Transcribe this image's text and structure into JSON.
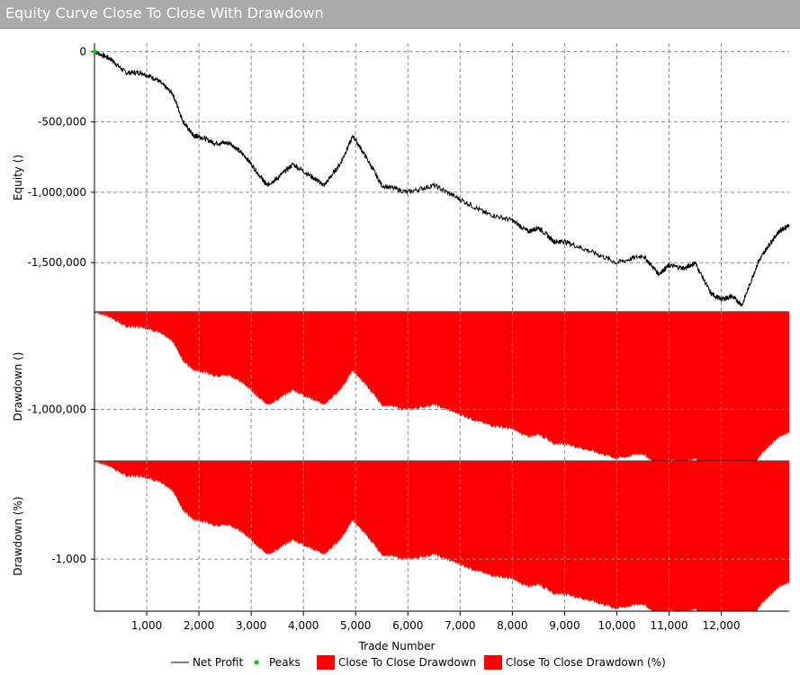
{
  "window": {
    "title": "Equity Curve Close To Close With Drawdown"
  },
  "colors": {
    "equity_line": "#000000",
    "peaks": "#00cc00",
    "drawdown_fill": "#ff0000",
    "title_bar": "#aaaaaa",
    "grid": "#8a8a8a"
  },
  "chart_data": [
    {
      "type": "line",
      "panel": "equity",
      "ylabel": "Equity ()",
      "ylim": [
        -1850000,
        60000
      ],
      "yticks": [
        0,
        -500000,
        -1000000,
        -1500000
      ],
      "ytick_labels": [
        "0",
        "-500,000",
        "-1,000,000",
        "-1,500,000"
      ],
      "grid": true,
      "series": [
        {
          "name": "Net Profit",
          "x": [
            0,
            300,
            600,
            900,
            1200,
            1500,
            1700,
            1900,
            2000,
            2300,
            2600,
            2900,
            3200,
            3300,
            3500,
            3800,
            4200,
            4400,
            4700,
            4950,
            5200,
            5500,
            6000,
            6500,
            7000,
            7500,
            8000,
            8300,
            8500,
            8800,
            9000,
            9500,
            10000,
            10500,
            10800,
            11000,
            11300,
            11500,
            11800,
            12000,
            12200,
            12400,
            12700,
            12900,
            13100,
            13300
          ],
          "y": [
            0,
            -50000,
            -150000,
            -150000,
            -200000,
            -300000,
            -500000,
            -600000,
            -600000,
            -650000,
            -650000,
            -750000,
            -900000,
            -950000,
            -900000,
            -800000,
            -900000,
            -950000,
            -800000,
            -600000,
            -750000,
            -950000,
            -1000000,
            -950000,
            -1050000,
            -1150000,
            -1200000,
            -1280000,
            -1250000,
            -1350000,
            -1350000,
            -1420000,
            -1500000,
            -1450000,
            -1580000,
            -1520000,
            -1540000,
            -1500000,
            -1720000,
            -1760000,
            -1740000,
            -1800000,
            -1500000,
            -1380000,
            -1280000,
            -1230000
          ]
        }
      ],
      "peaks": {
        "name": "Peaks",
        "x": [
          0
        ],
        "y": [
          0
        ]
      }
    },
    {
      "type": "area",
      "panel": "drawdown",
      "ylabel": "Drawdown ()",
      "ylim": [
        -1530000,
        0
      ],
      "yticks": [
        -1000000
      ],
      "ytick_labels": [
        "-1,000,000"
      ],
      "grid": true,
      "series": [
        {
          "name": "Close To Close Drawdown",
          "source": "equity"
        }
      ]
    },
    {
      "type": "area",
      "panel": "drawdown_pct",
      "ylabel": "Drawdown (%)",
      "ylim": [
        -1530,
        0
      ],
      "yticks": [
        -1000
      ],
      "ytick_labels": [
        "-1,000"
      ],
      "grid": true,
      "series": [
        {
          "name": "Close To Close Drawdown (%)",
          "source": "equity",
          "scale": 0.001
        }
      ]
    }
  ],
  "x_axis": {
    "label": "Trade Number",
    "xlim": [
      0,
      13300
    ],
    "ticks": [
      1000,
      2000,
      3000,
      4000,
      5000,
      6000,
      7000,
      8000,
      9000,
      10000,
      11000,
      12000
    ],
    "tick_labels": [
      "1,000",
      "2,000",
      "3,000",
      "4,000",
      "5,000",
      "6,000",
      "7,000",
      "8,000",
      "9,000",
      "10,000",
      "11,000",
      "12,000"
    ]
  },
  "legend": {
    "placement": "bottom",
    "items": [
      {
        "label": "Net Profit",
        "marker": "line",
        "color": "#000000"
      },
      {
        "label": "Peaks",
        "marker": "dot",
        "color": "#00cc00"
      },
      {
        "label": "Close To Close Drawdown",
        "marker": "box",
        "color": "#ff0000"
      },
      {
        "label": "Close To Close Drawdown (%)",
        "marker": "box",
        "color": "#ff0000"
      }
    ]
  }
}
